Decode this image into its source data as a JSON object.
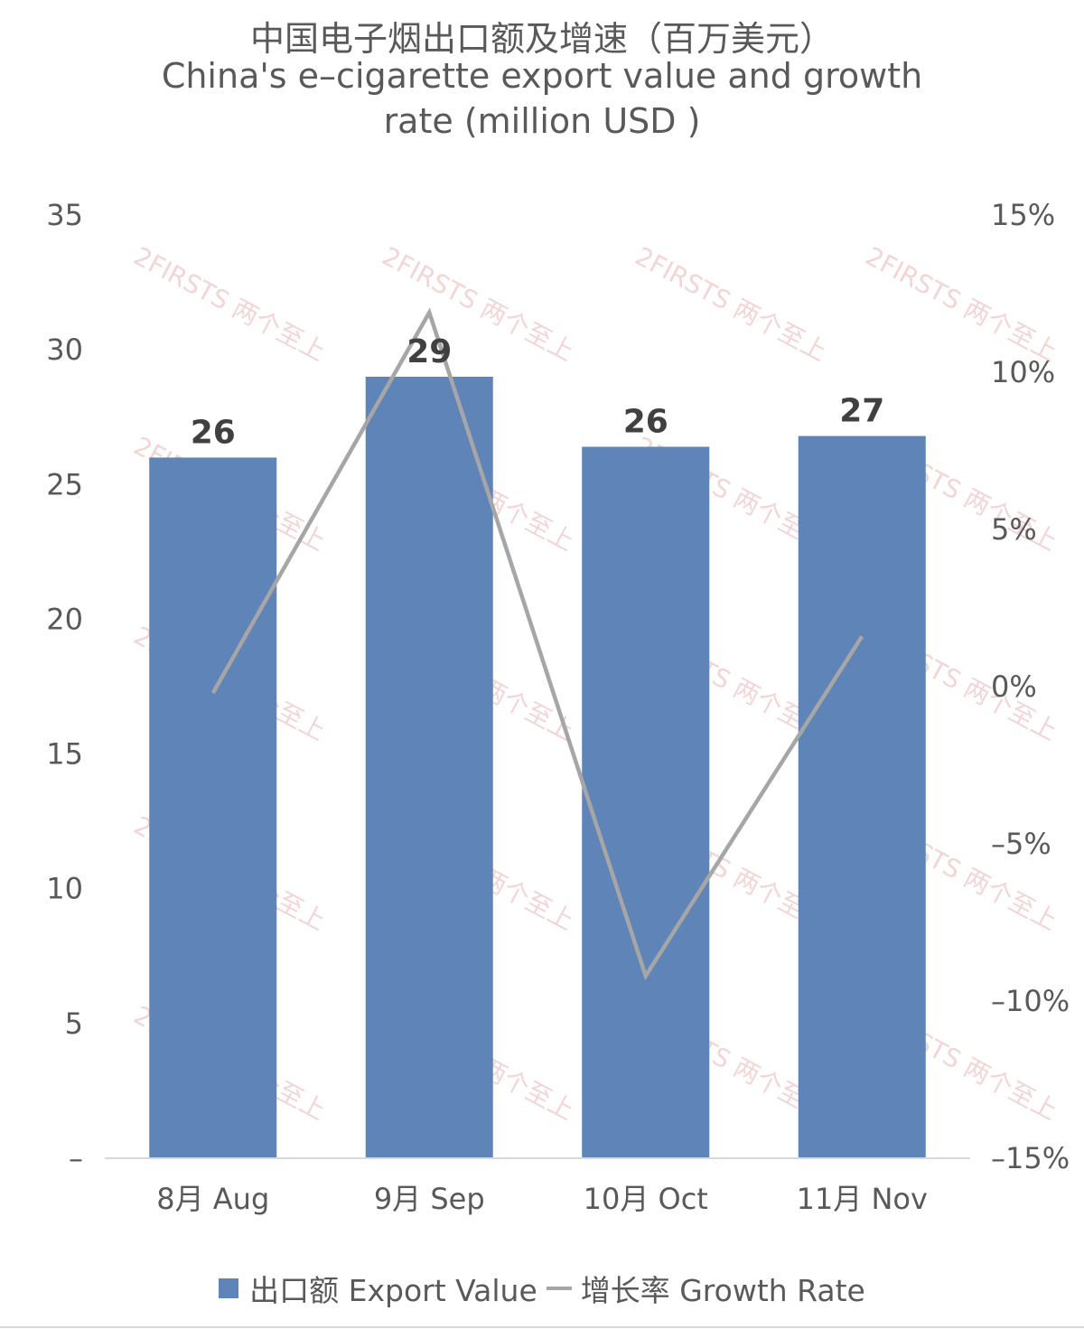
{
  "chart_data": {
    "type": "bar",
    "title_lines": [
      "中国电子烟出口额及增速（百万美元）",
      "China's e–cigarette export value and growth",
      "rate (million USD )"
    ],
    "categories": [
      "8月 Aug",
      "9月 Sep",
      "10月 Oct",
      "11月 Nov"
    ],
    "series": [
      {
        "name": "出口额 Export Value",
        "type": "bar",
        "axis": "left",
        "values": [
          26.0,
          29.0,
          26.4,
          26.8
        ],
        "data_labels": [
          "26",
          "29",
          "26",
          "27"
        ],
        "color": "#5f84b7"
      },
      {
        "name": "增长率 Growth Rate",
        "type": "line",
        "axis": "right",
        "values": [
          -0.2,
          11.9,
          -9.2,
          1.6
        ],
        "unit": "%",
        "color": "#a6a6a6"
      }
    ],
    "y_left": {
      "ylim": [
        0,
        35
      ],
      "ticks": [
        0,
        5,
        10,
        15,
        20,
        25,
        30,
        35
      ],
      "tick_labels": [
        "–",
        "5",
        "10",
        "15",
        "20",
        "25",
        "30",
        "35"
      ]
    },
    "y_right": {
      "ylim": [
        -15,
        15
      ],
      "ticks": [
        -15,
        -10,
        -5,
        0,
        5,
        10,
        15
      ],
      "tick_labels": [
        "–15%",
        "–10%",
        "–5%",
        "0%",
        "5%",
        "10%",
        "15%"
      ]
    },
    "legend_position": "bottom",
    "grid": false
  },
  "legend": {
    "bar_label": "出口额 Export Value",
    "line_label": "增长率 Growth Rate"
  },
  "watermark": {
    "text": "2FIRSTS 两个至上"
  }
}
